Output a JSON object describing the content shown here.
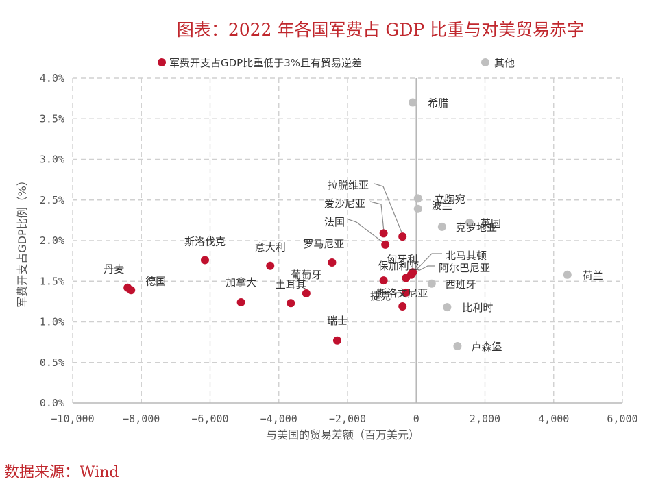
{
  "title": "图表：2022 年各国军费占 GDP 比重与对美贸易赤字",
  "source": "数据来源：Wind",
  "colors": {
    "highlight": "#c0102e",
    "other": "#bfbfbf",
    "grid": "#d0d0d0",
    "axis": "#b8b8b8",
    "leader": "#8c8c8c"
  },
  "chart_data": {
    "type": "scatter",
    "xlabel": "与美国的贸易差额（百万美元）",
    "ylabel": "军费开支占GDP比例（%）",
    "xlim": [
      -10000,
      6000
    ],
    "ylim": [
      0,
      4.0
    ],
    "x_ticks": [
      -10000,
      -8000,
      -6000,
      -4000,
      -2000,
      0,
      2000,
      4000,
      6000
    ],
    "x_tick_labels": [
      "−10,000",
      "−8,000",
      "−6,000",
      "−4,000",
      "−2,000",
      "0",
      "2,000",
      "4,000",
      "6,000"
    ],
    "y_ticks": [
      0,
      0.5,
      1.0,
      1.5,
      2.0,
      2.5,
      3.0,
      3.5,
      4.0
    ],
    "y_tick_labels": [
      "0.0%",
      "0.5%",
      "1.0%",
      "1.5%",
      "2.0%",
      "2.5%",
      "3.0%",
      "3.5%",
      "4.0%"
    ],
    "grid": true,
    "legend_position": "top",
    "series": [
      {
        "name": "军费开支占GDP比重低于3%且有贸易逆差",
        "color": "#c0102e",
        "points": [
          {
            "label": "丹麦",
            "x": -8400,
            "y": 1.42
          },
          {
            "label": "德国",
            "x": -8300,
            "y": 1.39
          },
          {
            "label": "斯洛伐克",
            "x": -6150,
            "y": 1.76
          },
          {
            "label": "意大利",
            "x": -4250,
            "y": 1.69
          },
          {
            "label": "加拿大",
            "x": -5100,
            "y": 1.24
          },
          {
            "label": "土耳其",
            "x": -3650,
            "y": 1.23
          },
          {
            "label": "葡萄牙",
            "x": -3200,
            "y": 1.35
          },
          {
            "label": "罗马尼亚",
            "x": -2450,
            "y": 1.73
          },
          {
            "label": "瑞士",
            "x": -2300,
            "y": 0.77
          },
          {
            "label": "保加利亚",
            "x": -950,
            "y": 1.51
          },
          {
            "label": "法国",
            "x": -900,
            "y": 1.95
          },
          {
            "label": "爱沙尼亚",
            "x": -950,
            "y": 2.09
          },
          {
            "label": "拉脱维亚",
            "x": -400,
            "y": 2.05
          },
          {
            "label": "斯洛文尼亚",
            "x": -400,
            "y": 1.19
          },
          {
            "label": "捷克",
            "x": -300,
            "y": 1.36
          },
          {
            "label": "匈牙利",
            "x": -300,
            "y": 1.54
          },
          {
            "label": "北马其顿",
            "x": -100,
            "y": 1.61
          },
          {
            "label": "阿尔巴尼亚",
            "x": -150,
            "y": 1.58
          }
        ]
      },
      {
        "name": "其他",
        "color": "#bfbfbf",
        "points": [
          {
            "label": "希腊",
            "x": -100,
            "y": 3.7
          },
          {
            "label": "立陶宛",
            "x": 50,
            "y": 2.52
          },
          {
            "label": "波兰",
            "x": 50,
            "y": 2.39
          },
          {
            "label": "克罗地亚",
            "x": 750,
            "y": 2.17
          },
          {
            "label": "英国",
            "x": 1550,
            "y": 2.22
          },
          {
            "label": "西班牙",
            "x": 450,
            "y": 1.47
          },
          {
            "label": "比利时",
            "x": 900,
            "y": 1.18
          },
          {
            "label": "卢森堡",
            "x": 1200,
            "y": 0.7
          },
          {
            "label": "荷兰",
            "x": 4400,
            "y": 1.58
          }
        ]
      }
    ]
  }
}
